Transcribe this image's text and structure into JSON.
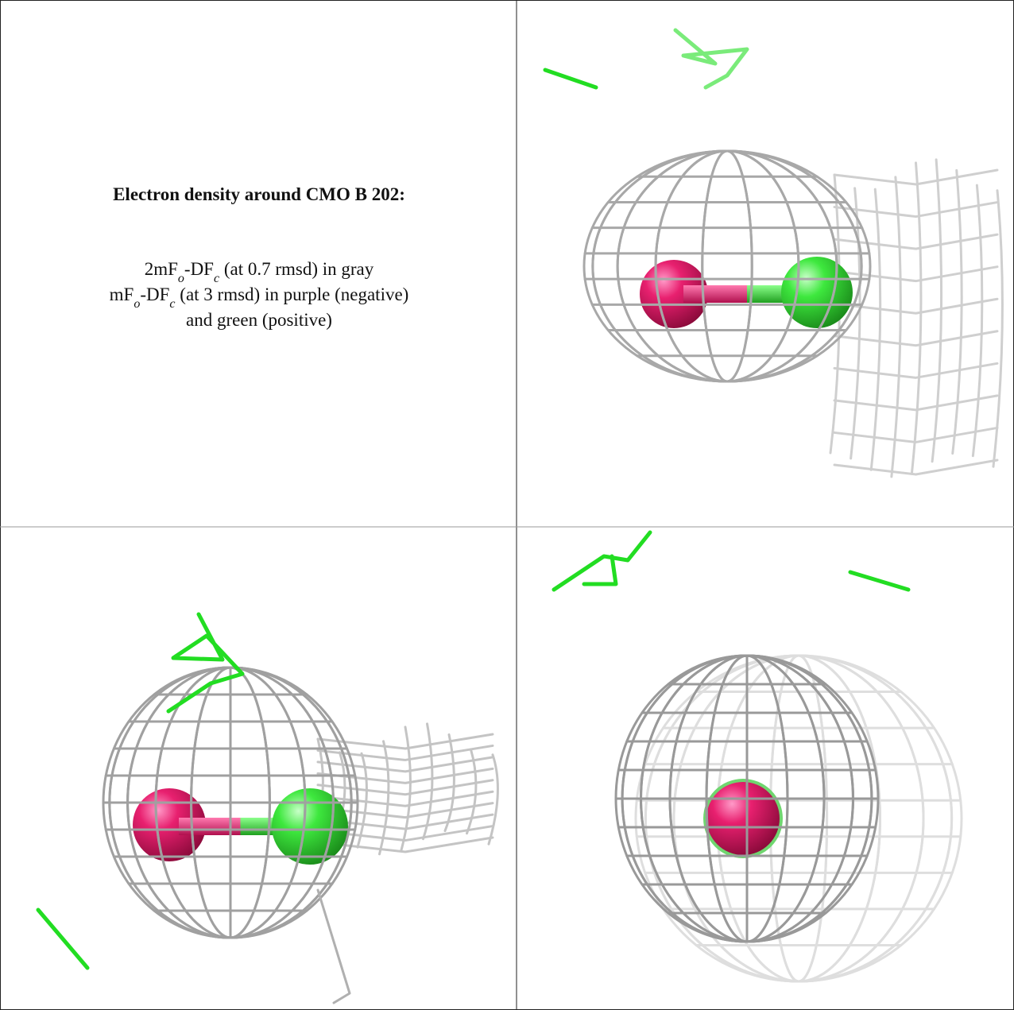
{
  "caption": {
    "title": "Electron density around CMO B 202:",
    "lines": [
      [
        "2mF",
        "o",
        "-DF",
        "c",
        " (at 0.7 rmsd) in gray"
      ],
      [
        "mF",
        "o",
        "-DF",
        "c",
        " (at 3 rmsd) in purple (negative)"
      ],
      [
        "and green (positive)"
      ]
    ]
  }
}
